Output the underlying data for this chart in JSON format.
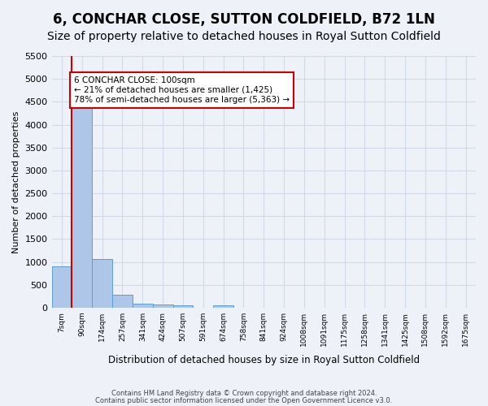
{
  "title": "6, CONCHAR CLOSE, SUTTON COLDFIELD, B72 1LN",
  "subtitle": "Size of property relative to detached houses in Royal Sutton Coldfield",
  "xlabel": "Distribution of detached houses by size in Royal Sutton Coldfield",
  "ylabel": "Number of detached properties",
  "footer1": "Contains HM Land Registry data © Crown copyright and database right 2024.",
  "footer2": "Contains public sector information licensed under the Open Government Licence v3.0.",
  "bin_labels": [
    "7sqm",
    "90sqm",
    "174sqm",
    "257sqm",
    "341sqm",
    "424sqm",
    "507sqm",
    "591sqm",
    "674sqm",
    "758sqm",
    "841sqm",
    "924sqm",
    "1008sqm",
    "1091sqm",
    "1175sqm",
    "1258sqm",
    "1341sqm",
    "1425sqm",
    "1508sqm",
    "1592sqm",
    "1675sqm"
  ],
  "bar_values": [
    900,
    4540,
    1060,
    275,
    80,
    65,
    55,
    0,
    55,
    0,
    0,
    0,
    0,
    0,
    0,
    0,
    0,
    0,
    0,
    0,
    0
  ],
  "bar_color": "#aec6e8",
  "bar_edge_color": "#5a9fd4",
  "property_line_color": "#cc0000",
  "annotation_text": "6 CONCHAR CLOSE: 100sqm\n← 21% of detached houses are smaller (1,425)\n78% of semi-detached houses are larger (5,363) →",
  "annotation_box_color": "#cc0000",
  "annotation_box_fill": "#ffffff",
  "ylim": [
    0,
    5500
  ],
  "yticks": [
    0,
    500,
    1000,
    1500,
    2000,
    2500,
    3000,
    3500,
    4000,
    4500,
    5000,
    5500
  ],
  "grid_color": "#d0d8e8",
  "background_color": "#eef2f8",
  "plot_bg_color": "#eef2f8",
  "title_fontsize": 12,
  "subtitle_fontsize": 10
}
